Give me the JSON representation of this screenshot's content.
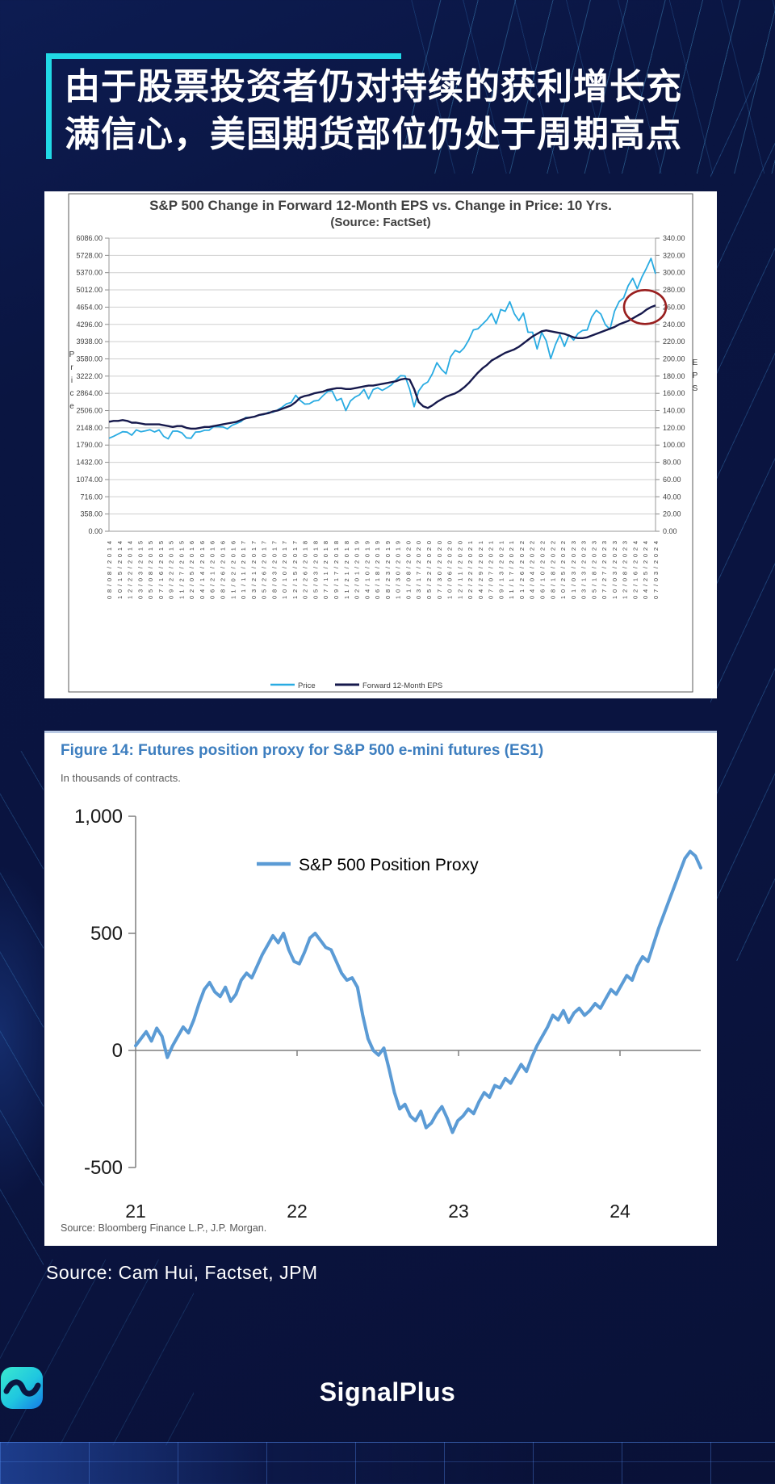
{
  "header": {
    "title_line1": "由于股票投资者仍对持续的获利增长充",
    "title_line2": "满信心，美国期货部位仍处于周期高点",
    "accent_color": "#21d9e6"
  },
  "footer": {
    "source_note": "Source: Cam Hui, Factset, JPM",
    "brand": "SignalPlus"
  },
  "chart_data": [
    {
      "id": "factset-eps-vs-price",
      "type": "line",
      "title": "S&P 500 Change in Forward 12-Month EPS vs. Change in Price: 10 Yrs.",
      "subtitle": "(Source: FactSet)",
      "left_axis_label": "Price",
      "right_axis_label": "EPS",
      "left_ticks": [
        "6086.00",
        "5728.00",
        "5370.00",
        "5012.00",
        "4654.00",
        "4296.00",
        "3938.00",
        "3580.00",
        "3222.00",
        "2864.00",
        "2506.00",
        "2148.00",
        "1790.00",
        "1432.00",
        "1074.00",
        "716.00",
        "358.00",
        "0.00"
      ],
      "right_ticks": [
        "340.00",
        "320.00",
        "300.00",
        "280.00",
        "260.00",
        "240.00",
        "220.00",
        "200.00",
        "180.00",
        "160.00",
        "140.00",
        "120.00",
        "100.00",
        "80.00",
        "60.00",
        "40.00",
        "20.00",
        "0.00"
      ],
      "left_max": 6086,
      "right_max": 340,
      "x_ticks": [
        "08/08/2014",
        "10/15/2014",
        "12/22/2014",
        "03/03/2015",
        "05/08/2015",
        "07/16/2015",
        "09/22/2015",
        "11/27/2015",
        "02/05/2016",
        "04/14/2016",
        "06/21/2016",
        "08/26/2016",
        "11/02/2016",
        "01/11/2017",
        "03/21/2017",
        "05/26/2017",
        "08/03/2017",
        "10/10/2017",
        "12/15/2017",
        "02/26/2018",
        "05/03/2018",
        "07/11/2018",
        "09/17/2018",
        "11/21/2018",
        "02/01/2019",
        "04/10/2019",
        "06/18/2019",
        "08/23/2019",
        "10/30/2019",
        "01/08/2020",
        "03/17/2020",
        "05/22/2020",
        "07/30/2020",
        "10/06/2020",
        "12/11/2020",
        "02/22/2021",
        "04/29/2021",
        "07/07/2021",
        "09/13/2021",
        "11/17/2021",
        "01/26/2022",
        "04/04/2022",
        "06/10/2022",
        "08/18/2022",
        "10/25/2022",
        "01/03/2023",
        "03/13/2023",
        "05/18/2023",
        "07/27/2023",
        "10/03/2023",
        "12/08/2023",
        "02/16/2024",
        "04/25/2024",
        "07/03/2024"
      ],
      "series": [
        {
          "name": "Price",
          "color": "#29abe2",
          "axis": "left",
          "values": [
            1931,
            1972,
            2018,
            2068,
            2059,
            1995,
            2105,
            2068,
            2086,
            2107,
            2063,
            2104,
            1972,
            1920,
            2079,
            2080,
            2044,
            1940,
            1932,
            2060,
            2065,
            2097,
            2099,
            2174,
            2171,
            2168,
            2126,
            2199,
            2239,
            2279,
            2364,
            2363,
            2384,
            2412,
            2423,
            2470,
            2472,
            2519,
            2575,
            2648,
            2674,
            2824,
            2714,
            2641,
            2648,
            2705,
            2718,
            2816,
            2902,
            2914,
            2712,
            2760,
            2507,
            2704,
            2784,
            2834,
            2946,
            2752,
            2942,
            2980,
            2926,
            2977,
            3038,
            3141,
            3231,
            3226,
            2954,
            2585,
            2912,
            3044,
            3100,
            3271,
            3500,
            3363,
            3270,
            3622,
            3756,
            3714,
            3811,
            3973,
            4181,
            4204,
            4298,
            4395,
            4523,
            4308,
            4605,
            4567,
            4766,
            4516,
            4374,
            4530,
            4132,
            4132,
            3785,
            4130,
            3955,
            3586,
            3872,
            4080,
            3840,
            4077,
            3970,
            4109,
            4169,
            4180,
            4450,
            4589,
            4508,
            4288,
            4194,
            4568,
            4770,
            4846,
            5096,
            5254,
            5036,
            5278,
            5460,
            5667,
            5346
          ]
        },
        {
          "name": "Forward 12-Month EPS",
          "color": "#16194c",
          "axis": "right",
          "values": [
            127,
            128,
            128,
            129,
            128,
            126,
            126,
            125,
            124,
            124,
            124,
            124,
            123,
            122,
            121,
            122,
            122,
            120,
            119,
            119,
            120,
            121,
            121,
            122,
            123,
            124,
            125,
            126,
            127,
            129,
            131,
            132,
            133,
            135,
            136,
            137,
            139,
            140,
            142,
            144,
            146,
            150,
            155,
            157,
            158,
            160,
            161,
            162,
            164,
            165,
            166,
            166,
            165,
            165,
            166,
            167,
            168,
            169,
            169,
            170,
            171,
            172,
            173,
            174,
            176,
            177,
            176,
            165,
            150,
            145,
            143,
            146,
            150,
            153,
            156,
            158,
            160,
            163,
            167,
            172,
            178,
            184,
            189,
            193,
            198,
            201,
            204,
            207,
            209,
            211,
            214,
            218,
            222,
            226,
            229,
            232,
            233,
            232,
            231,
            230,
            229,
            227,
            225,
            224,
            224,
            225,
            227,
            229,
            231,
            233,
            235,
            237,
            240,
            242,
            244,
            247,
            250,
            253,
            257,
            260,
            262
          ]
        }
      ],
      "annotation": {
        "shape": "ellipse",
        "color": "#991f1f",
        "meaning": "highlight of latest Forward EPS value"
      }
    },
    {
      "id": "futures-position-proxy",
      "type": "line",
      "figure_title": "Figure 14: Futures position proxy for S&P 500 e-mini futures (ES1)",
      "subtitle": "In thousands of contracts.",
      "legend": "S&P 500 Position Proxy",
      "source": "Source: Bloomberg Finance L.P., J.P. Morgan.",
      "line_color": "#5b9bd5",
      "ylim": [
        -500,
        1000
      ],
      "y_ticks": [
        "1,000",
        "500",
        "0",
        "-500"
      ],
      "y_tick_values": [
        1000,
        500,
        0,
        -500
      ],
      "x_ticks": [
        "21",
        "22",
        "23",
        "24"
      ],
      "values": [
        20,
        50,
        80,
        40,
        95,
        60,
        -30,
        20,
        60,
        100,
        75,
        130,
        200,
        260,
        290,
        250,
        230,
        270,
        210,
        240,
        300,
        330,
        310,
        360,
        410,
        450,
        490,
        460,
        500,
        430,
        380,
        370,
        420,
        480,
        500,
        470,
        440,
        430,
        380,
        330,
        300,
        310,
        270,
        150,
        50,
        0,
        -20,
        10,
        -80,
        -180,
        -250,
        -230,
        -280,
        -300,
        -260,
        -330,
        -310,
        -270,
        -240,
        -290,
        -350,
        -300,
        -280,
        -250,
        -270,
        -220,
        -180,
        -200,
        -150,
        -160,
        -120,
        -140,
        -100,
        -60,
        -90,
        -30,
        20,
        60,
        100,
        150,
        130,
        170,
        120,
        160,
        180,
        150,
        170,
        200,
        180,
        220,
        260,
        240,
        280,
        320,
        300,
        360,
        400,
        380,
        450,
        520,
        580,
        640,
        700,
        760,
        820,
        850,
        830,
        780
      ]
    }
  ]
}
